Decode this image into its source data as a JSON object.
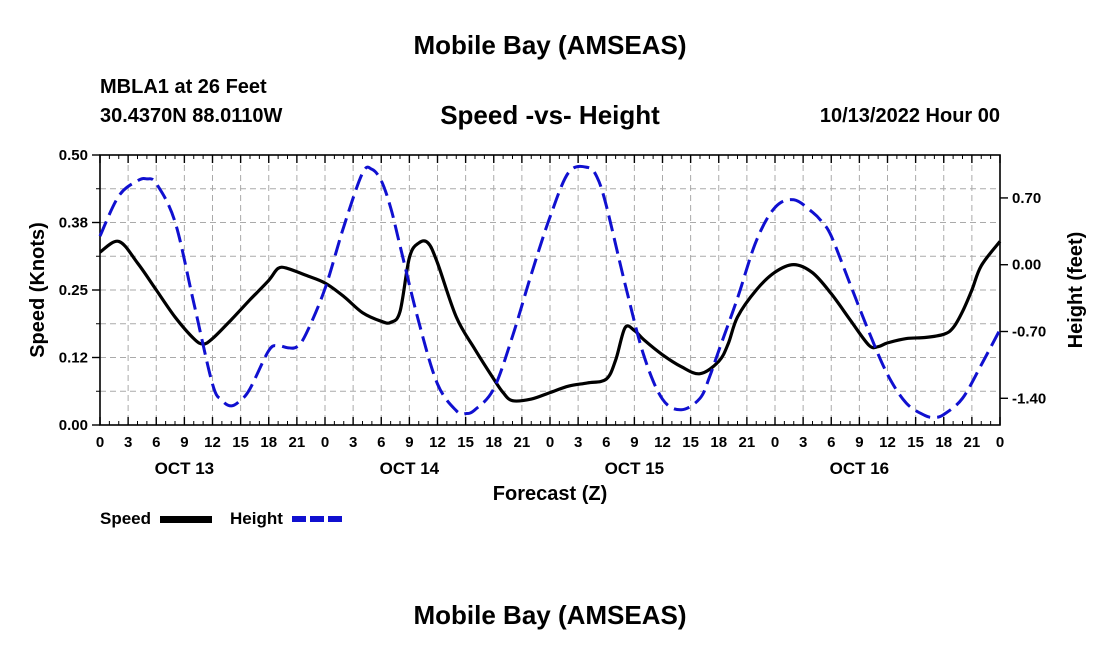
{
  "header": {
    "title": "Mobile Bay (AMSEAS)",
    "station": "MBLA1 at 26 Feet",
    "coords": "30.4370N  88.0110W",
    "subtitle": "Speed -vs- Height",
    "datetime": "10/13/2022 Hour 00"
  },
  "footer": {
    "title": "Mobile Bay (AMSEAS)"
  },
  "legend": {
    "speed_label": "Speed",
    "height_label": "Height"
  },
  "colors": {
    "speed": "#000000",
    "height": "#1010d0",
    "grid": "#aaaaaa"
  },
  "chart_data": {
    "type": "line",
    "title": "Speed -vs- Height",
    "xlabel": "Forecast (Z)",
    "ylabel": "Speed (Knots)",
    "ylabel_right": "Height (feet)",
    "x_range": [
      0,
      96
    ],
    "ylim": [
      0,
      0.5
    ],
    "y2lim": [
      -1.68,
      1.15
    ],
    "x_tick_labels": [
      "0",
      "3",
      "6",
      "9",
      "12",
      "15",
      "18",
      "21",
      "0",
      "3",
      "6",
      "9",
      "12",
      "15",
      "18",
      "21",
      "0",
      "3",
      "6",
      "9",
      "12",
      "15",
      "18",
      "21",
      "0",
      "3",
      "6",
      "9",
      "12",
      "15",
      "18",
      "21",
      "0"
    ],
    "date_labels": [
      {
        "x": 9,
        "label": "OCT 13"
      },
      {
        "x": 33,
        "label": "OCT 14"
      },
      {
        "x": 57,
        "label": "OCT 15"
      },
      {
        "x": 81,
        "label": "OCT 16"
      }
    ],
    "y_ticks": [
      {
        "value": 0.0,
        "label": "0.00"
      },
      {
        "value": 0.125,
        "label": "0.12"
      },
      {
        "value": 0.25,
        "label": "0.25"
      },
      {
        "value": 0.375,
        "label": "0.38"
      },
      {
        "value": 0.5,
        "label": "0.50"
      }
    ],
    "y2_ticks": [
      {
        "value": 0.7,
        "label": "0.70"
      },
      {
        "value": 0.0,
        "label": "0.00"
      },
      {
        "value": -0.7,
        "label": "-0.70"
      },
      {
        "value": -1.4,
        "label": "-1.40"
      }
    ],
    "series": [
      {
        "name": "Speed",
        "axis": "left",
        "style": "solid",
        "x": [
          0,
          2,
          4,
          6,
          8,
          10,
          11,
          12,
          14,
          16,
          18,
          19,
          20,
          22,
          24,
          26,
          28,
          30,
          31,
          32,
          33,
          34,
          35,
          36,
          38,
          40,
          42,
          43,
          44,
          46,
          48,
          50,
          52,
          54,
          55,
          56,
          57,
          58,
          60,
          62,
          64,
          66,
          67,
          68,
          70,
          72,
          74,
          76,
          78,
          80,
          82,
          83,
          84,
          86,
          88,
          90,
          91,
          92,
          93,
          94,
          96
        ],
        "y": [
          0.32,
          0.34,
          0.3,
          0.25,
          0.2,
          0.16,
          0.15,
          0.16,
          0.195,
          0.232,
          0.268,
          0.29,
          0.29,
          0.277,
          0.263,
          0.238,
          0.208,
          0.192,
          0.19,
          0.21,
          0.31,
          0.337,
          0.337,
          0.3,
          0.2,
          0.14,
          0.085,
          0.06,
          0.045,
          0.048,
          0.06,
          0.072,
          0.078,
          0.085,
          0.12,
          0.18,
          0.175,
          0.158,
          0.13,
          0.108,
          0.095,
          0.118,
          0.15,
          0.2,
          0.25,
          0.283,
          0.297,
          0.282,
          0.243,
          0.195,
          0.148,
          0.145,
          0.152,
          0.16,
          0.162,
          0.168,
          0.18,
          0.21,
          0.25,
          0.295,
          0.34
        ]
      },
      {
        "name": "Height",
        "axis": "right",
        "style": "dashed",
        "x": [
          0,
          2,
          4,
          5,
          6,
          8,
          10,
          12,
          13,
          14,
          15,
          16,
          18,
          19,
          20,
          21,
          22,
          24,
          26,
          28,
          29,
          30,
          31,
          32,
          34,
          36,
          38,
          39,
          40,
          42,
          44,
          46,
          48,
          50,
          52,
          53,
          54,
          56,
          58,
          60,
          62,
          64,
          65,
          66,
          68,
          70,
          72,
          74,
          76,
          77,
          78,
          80,
          82,
          84,
          86,
          88,
          89,
          90,
          92,
          94,
          96
        ],
        "y": [
          0.3,
          0.72,
          0.88,
          0.9,
          0.85,
          0.45,
          -0.4,
          -1.25,
          -1.42,
          -1.48,
          -1.42,
          -1.3,
          -0.9,
          -0.85,
          -0.87,
          -0.86,
          -0.72,
          -0.25,
          0.4,
          0.96,
          1.0,
          0.88,
          0.6,
          0.2,
          -0.6,
          -1.25,
          -1.53,
          -1.56,
          -1.52,
          -1.3,
          -0.75,
          -0.1,
          0.5,
          0.97,
          1.02,
          0.92,
          0.62,
          -0.2,
          -0.95,
          -1.41,
          -1.52,
          -1.4,
          -1.18,
          -0.9,
          -0.35,
          0.25,
          0.6,
          0.68,
          0.55,
          0.45,
          0.3,
          -0.2,
          -0.7,
          -1.15,
          -1.45,
          -1.58,
          -1.6,
          -1.57,
          -1.4,
          -1.05,
          -0.68
        ]
      }
    ]
  }
}
